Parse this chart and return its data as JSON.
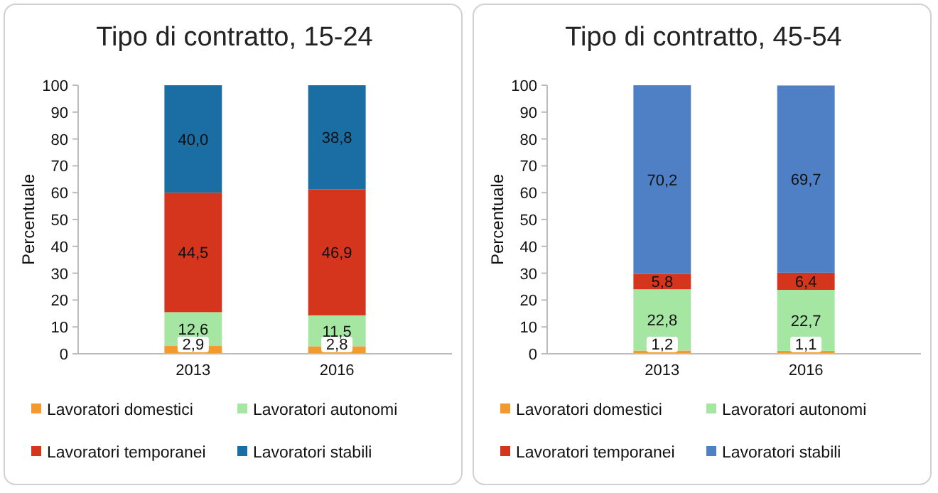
{
  "chart_data": [
    {
      "type": "bar",
      "title": "Tipo di contratto, 15-24",
      "ylabel": "Percentuale",
      "categories": [
        "2013",
        "2016"
      ],
      "stacked": true,
      "legend": "bottom",
      "ylim": [
        0,
        100
      ],
      "yticks": [
        0,
        10,
        20,
        30,
        40,
        50,
        60,
        70,
        80,
        90,
        100
      ],
      "series": [
        {
          "name": "Lavoratori domestici",
          "color": "#f39a2e",
          "values": [
            2.9,
            2.8
          ],
          "value_labels": [
            "2,9",
            "2,8"
          ]
        },
        {
          "name": "Lavoratori autonomi",
          "color": "#a6e6a3",
          "values": [
            12.6,
            11.5
          ],
          "value_labels": [
            "12,6",
            "11,5"
          ]
        },
        {
          "name": "Lavoratori temporanei",
          "color": "#d4351c",
          "values": [
            44.5,
            46.9
          ],
          "value_labels": [
            "44,5",
            "46,9"
          ]
        },
        {
          "name": "Lavoratori stabili",
          "color": "#1b6ea3",
          "values": [
            40.0,
            38.8
          ],
          "value_labels": [
            "40,0",
            "38,8"
          ]
        }
      ]
    },
    {
      "type": "bar",
      "title": "Tipo di contratto, 45-54",
      "ylabel": "Percentuale",
      "categories": [
        "2013",
        "2016"
      ],
      "stacked": true,
      "legend": "bottom",
      "ylim": [
        0,
        100
      ],
      "yticks": [
        0,
        10,
        20,
        30,
        40,
        50,
        60,
        70,
        80,
        90,
        100
      ],
      "series": [
        {
          "name": "Lavoratori domestici",
          "color": "#f39a2e",
          "values": [
            1.2,
            1.1
          ],
          "value_labels": [
            "1,2",
            "1,1"
          ]
        },
        {
          "name": "Lavoratori autonomi",
          "color": "#a6e6a3",
          "values": [
            22.8,
            22.7
          ],
          "value_labels": [
            "22,8",
            "22,7"
          ]
        },
        {
          "name": "Lavoratori temporanei",
          "color": "#d4351c",
          "values": [
            5.8,
            6.4
          ],
          "value_labels": [
            "5,8",
            "6,4"
          ]
        },
        {
          "name": "Lavoratori stabili",
          "color": "#4f80c6",
          "values": [
            70.2,
            69.7
          ],
          "value_labels": [
            "70,2",
            "69,7"
          ]
        }
      ]
    }
  ]
}
